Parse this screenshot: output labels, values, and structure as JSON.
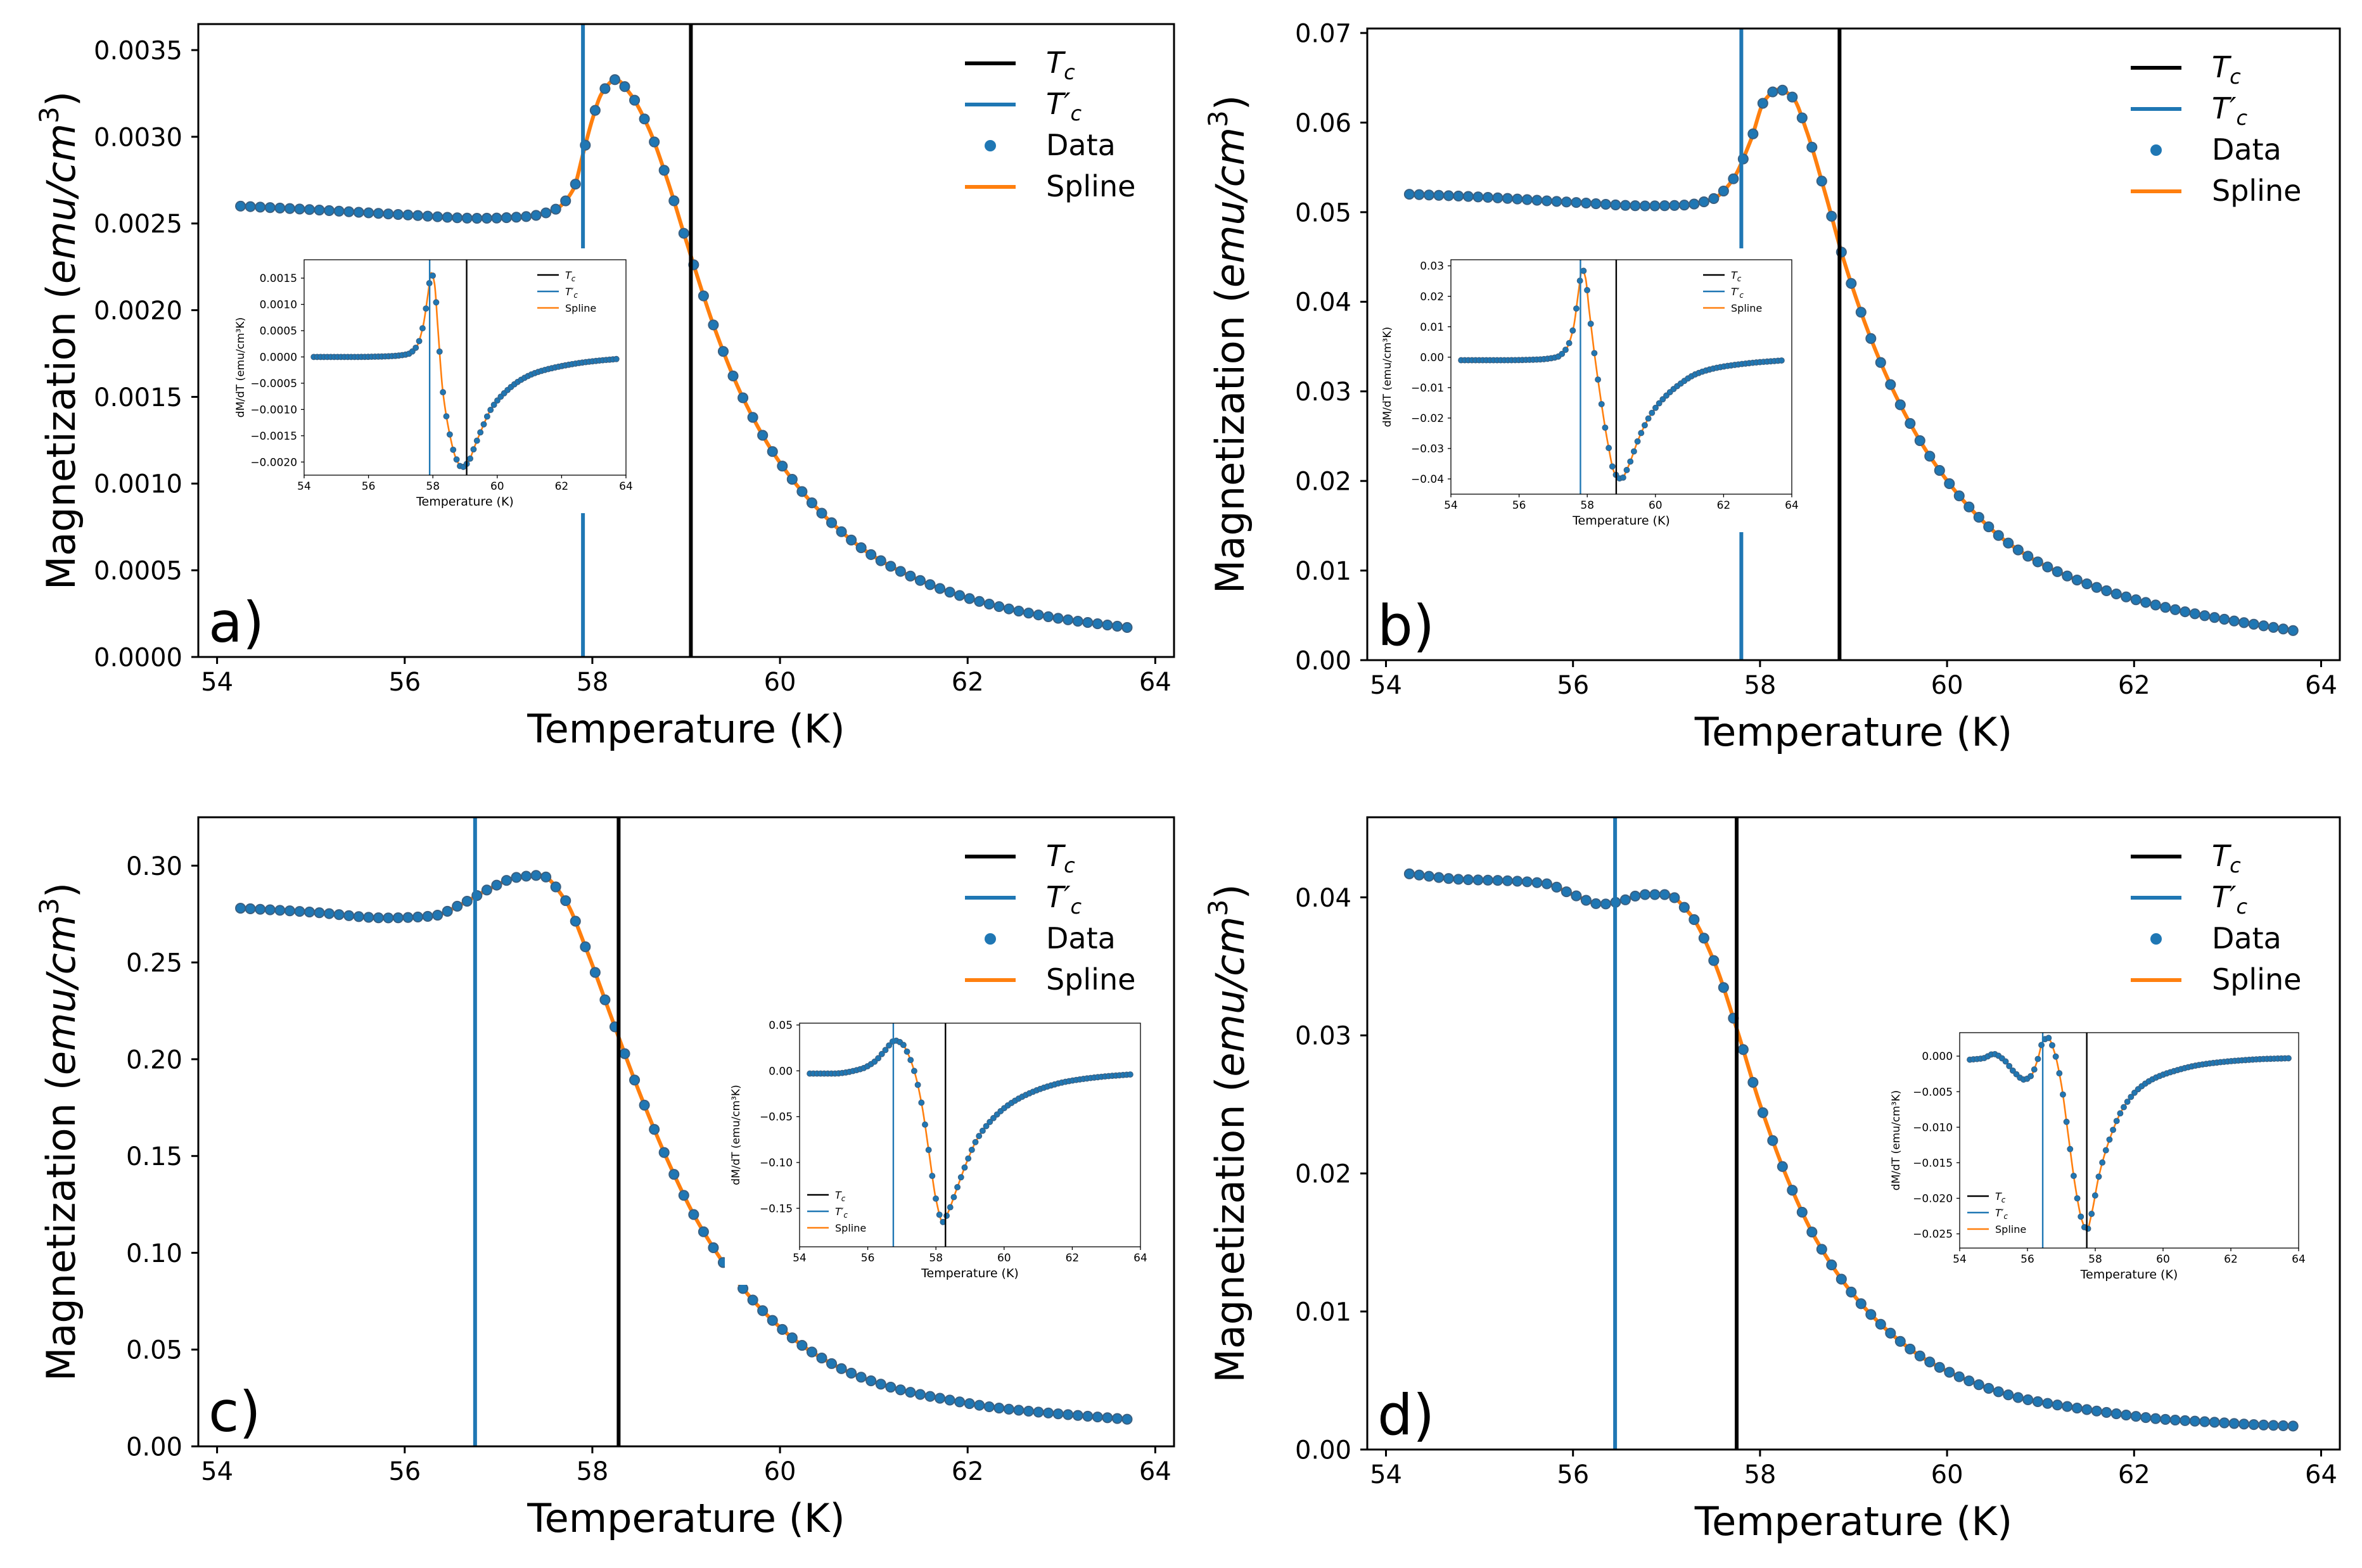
{
  "figure": {
    "colors": {
      "tc": "#000000",
      "tcp": "#1f77b4",
      "data": "#1f77b4",
      "spline": "#ff7f0e",
      "axis": "#000000"
    },
    "legend_labels": {
      "tc_main": "T",
      "tc_sub": "c",
      "tcp_main": "T′",
      "tcp_sub": "c",
      "data": "Data",
      "spline": "Spline"
    }
  },
  "chart_data": [
    {
      "id": "a",
      "panel_label": "a)",
      "type": "line",
      "xlabel": "Temperature (K)",
      "ylabel_main": "Magnetization (",
      "ylabel_unit": "emu/cm",
      "ylabel_sup": "3",
      "ylabel_close": ")",
      "xlim": [
        53.8,
        64.2
      ],
      "ylim": [
        0,
        0.00365
      ],
      "xticks": [
        54,
        56,
        58,
        60,
        62,
        64
      ],
      "yticks": [
        0,
        0.0005,
        0.001,
        0.0015,
        0.002,
        0.0025,
        0.003,
        0.0035
      ],
      "yticklabels": [
        "0.0000",
        "0.0005",
        "0.0010",
        "0.0015",
        "0.0020",
        "0.0025",
        "0.0030",
        "0.0035"
      ],
      "tc": 59.05,
      "tcp": 57.9,
      "legend": "upper right",
      "x": [
        54.25,
        55.0,
        56.0,
        56.8,
        57.3,
        57.6,
        57.8,
        57.9,
        58.0,
        58.1,
        58.25,
        58.4,
        58.6,
        58.8,
        59.0,
        59.3,
        59.6,
        60.0,
        60.5,
        61.0,
        61.5,
        62.0,
        62.5,
        63.0,
        63.7
      ],
      "y": [
        0.0026,
        0.00258,
        0.00255,
        0.00253,
        0.00254,
        0.00258,
        0.0027,
        0.0029,
        0.0031,
        0.00325,
        0.00333,
        0.00325,
        0.00305,
        0.00275,
        0.0024,
        0.0019,
        0.0015,
        0.00112,
        0.0008,
        0.00058,
        0.00044,
        0.00034,
        0.00027,
        0.00022,
        0.00017
      ],
      "inset": {
        "xlabel": "Temperature (K)",
        "ylabel": "dM/dT (emu/cm³K)",
        "xlim": [
          54.0,
          64.0
        ],
        "ylim": [
          -0.00225,
          0.00185
        ],
        "xticks": [
          54,
          56,
          58,
          60,
          62,
          64
        ],
        "yticks": [
          -0.002,
          -0.0015,
          -0.001,
          -0.0005,
          0,
          0.0005,
          0.001,
          0.0015
        ],
        "yticklabels": [
          "−0.0020",
          "−0.0015",
          "−0.0010",
          "−0.0005",
          "0.0000",
          "0.0005",
          "0.0010",
          "0.0015"
        ],
        "tc": 59.05,
        "tcp": 57.9,
        "x": [
          54.3,
          55.5,
          56.5,
          57.2,
          57.5,
          57.7,
          57.85,
          57.95,
          58.05,
          58.15,
          58.3,
          58.5,
          58.7,
          58.9,
          59.1,
          59.3,
          59.5,
          59.8,
          60.2,
          60.7,
          61.2,
          61.8,
          62.5,
          63.0,
          63.7
        ],
        "y": [
          0.0,
          0.0,
          1e-05,
          5e-05,
          0.0002,
          0.0006,
          0.0012,
          0.0016,
          0.0014,
          0.0006,
          -0.0006,
          -0.0014,
          -0.0019,
          -0.0021,
          -0.002,
          -0.0017,
          -0.0014,
          -0.001,
          -0.0007,
          -0.00045,
          -0.0003,
          -0.0002,
          -0.00012,
          -8e-05,
          -4e-05
        ]
      }
    },
    {
      "id": "b",
      "panel_label": "b)",
      "type": "line",
      "xlabel": "Temperature (K)",
      "ylabel_main": "Magnetization (",
      "ylabel_unit": "emu/cm",
      "ylabel_sup": "3",
      "ylabel_close": ")",
      "xlim": [
        53.8,
        64.2
      ],
      "ylim": [
        0,
        0.0705
      ],
      "xticks": [
        54,
        56,
        58,
        60,
        62,
        64
      ],
      "yticks": [
        0,
        0.01,
        0.02,
        0.03,
        0.04,
        0.05,
        0.06,
        0.07
      ],
      "yticklabels": [
        "0.00",
        "0.01",
        "0.02",
        "0.03",
        "0.04",
        "0.05",
        "0.06",
        "0.07"
      ],
      "tc": 58.85,
      "tcp": 57.8,
      "legend": "upper right",
      "x": [
        54.25,
        55.0,
        56.0,
        56.8,
        57.2,
        57.5,
        57.7,
        57.9,
        58.05,
        58.2,
        58.35,
        58.5,
        58.7,
        58.9,
        59.2,
        59.5,
        59.8,
        60.2,
        60.6,
        61.0,
        61.5,
        62.0,
        62.5,
        63.0,
        63.7
      ],
      "y": [
        0.052,
        0.0517,
        0.0511,
        0.0507,
        0.0508,
        0.0515,
        0.0535,
        0.058,
        0.0625,
        0.0637,
        0.0628,
        0.059,
        0.052,
        0.0445,
        0.0355,
        0.0285,
        0.023,
        0.0175,
        0.0135,
        0.0108,
        0.0085,
        0.0068,
        0.0055,
        0.0045,
        0.0033
      ],
      "inset": {
        "xlabel": "Temperature (K)",
        "ylabel": "dM/dT (emu/cm³K)",
        "xlim": [
          54.0,
          64.0
        ],
        "ylim": [
          -0.045,
          0.032
        ],
        "xticks": [
          54,
          56,
          58,
          60,
          62,
          64
        ],
        "yticks": [
          -0.04,
          -0.03,
          -0.02,
          -0.01,
          0,
          0.01,
          0.02,
          0.03
        ],
        "yticklabels": [
          "−0.04",
          "−0.03",
          "−0.02",
          "−0.01",
          "0.00",
          "0.01",
          "0.02",
          "0.03"
        ],
        "tc": 58.85,
        "tcp": 57.8,
        "x": [
          54.3,
          55.5,
          56.5,
          57.1,
          57.4,
          57.6,
          57.75,
          57.85,
          57.95,
          58.05,
          58.2,
          58.4,
          58.6,
          58.8,
          59.0,
          59.2,
          59.5,
          59.8,
          60.2,
          60.7,
          61.2,
          61.8,
          62.5,
          63.0,
          63.7
        ],
        "y": [
          -0.001,
          -0.001,
          -0.0008,
          0.0,
          0.003,
          0.01,
          0.022,
          0.029,
          0.026,
          0.016,
          0.002,
          -0.014,
          -0.028,
          -0.038,
          -0.04,
          -0.036,
          -0.027,
          -0.02,
          -0.014,
          -0.009,
          -0.0055,
          -0.0035,
          -0.0023,
          -0.0017,
          -0.0011
        ]
      }
    },
    {
      "id": "c",
      "panel_label": "c)",
      "type": "line",
      "xlabel": "Temperature (K)",
      "ylabel_main": "Magnetization (",
      "ylabel_unit": "emu/cm",
      "ylabel_sup": "3",
      "ylabel_close": ")",
      "xlim": [
        53.8,
        64.2
      ],
      "ylim": [
        0,
        0.325
      ],
      "xticks": [
        54,
        56,
        58,
        60,
        62,
        64
      ],
      "yticks": [
        0,
        0.05,
        0.1,
        0.15,
        0.2,
        0.25,
        0.3
      ],
      "yticklabels": [
        "0.00",
        "0.05",
        "0.10",
        "0.15",
        "0.20",
        "0.25",
        "0.30"
      ],
      "tc": 58.28,
      "tcp": 56.75,
      "legend": "upper right",
      "x": [
        54.25,
        55.0,
        55.8,
        56.3,
        56.6,
        56.9,
        57.2,
        57.45,
        57.7,
        57.95,
        58.2,
        58.5,
        58.8,
        59.1,
        59.5,
        59.9,
        60.3,
        60.8,
        61.3,
        61.8,
        62.3,
        62.8,
        63.3,
        63.7
      ],
      "y": [
        0.278,
        0.276,
        0.273,
        0.274,
        0.28,
        0.288,
        0.294,
        0.295,
        0.283,
        0.255,
        0.222,
        0.183,
        0.148,
        0.118,
        0.088,
        0.066,
        0.05,
        0.037,
        0.029,
        0.024,
        0.02,
        0.0175,
        0.0155,
        0.014
      ],
      "inset": {
        "xlabel": "Temperature (K)",
        "ylabel": "dM/dT (emu/cm³K)",
        "xlim": [
          54.0,
          64.0
        ],
        "ylim": [
          -0.192,
          0.052
        ],
        "xticks": [
          54,
          56,
          58,
          60,
          62,
          64
        ],
        "yticks": [
          -0.15,
          -0.1,
          -0.05,
          0,
          0.05
        ],
        "yticklabels": [
          "−0.15",
          "−0.10",
          "−0.05",
          "0.00",
          "0.05"
        ],
        "tc": 58.28,
        "tcp": 56.75,
        "x": [
          54.3,
          55.0,
          55.8,
          56.2,
          56.5,
          56.8,
          57.0,
          57.2,
          57.4,
          57.6,
          57.8,
          58.0,
          58.2,
          58.35,
          58.6,
          58.9,
          59.2,
          59.6,
          60.1,
          60.6,
          61.2,
          61.8,
          62.5,
          63.0,
          63.7
        ],
        "y": [
          -0.003,
          -0.003,
          0.002,
          0.01,
          0.022,
          0.033,
          0.03,
          0.017,
          -0.005,
          -0.04,
          -0.09,
          -0.14,
          -0.165,
          -0.155,
          -0.13,
          -0.1,
          -0.075,
          -0.055,
          -0.038,
          -0.027,
          -0.018,
          -0.012,
          -0.008,
          -0.006,
          -0.004
        ]
      }
    },
    {
      "id": "d",
      "panel_label": "d)",
      "type": "line",
      "xlabel": "Temperature (K)",
      "ylabel_main": "Magnetization (",
      "ylabel_unit": "emu/cm",
      "ylabel_sup": "3",
      "ylabel_close": ")",
      "xlim": [
        53.8,
        64.2
      ],
      "ylim": [
        0,
        0.0458
      ],
      "xticks": [
        54,
        56,
        58,
        60,
        62,
        64
      ],
      "yticks": [
        0,
        0.01,
        0.02,
        0.03,
        0.04
      ],
      "yticklabels": [
        "0.00",
        "0.01",
        "0.02",
        "0.03",
        "0.04"
      ],
      "tc": 57.75,
      "tcp": 56.45,
      "legend": "upper right",
      "x": [
        54.25,
        54.8,
        55.3,
        55.7,
        56.0,
        56.3,
        56.5,
        56.75,
        57.0,
        57.25,
        57.5,
        57.75,
        58.0,
        58.3,
        58.6,
        59.0,
        59.4,
        59.8,
        60.3,
        60.8,
        61.3,
        61.8,
        62.3,
        62.8,
        63.3,
        63.7
      ],
      "y": [
        0.0417,
        0.0413,
        0.0412,
        0.041,
        0.0402,
        0.0395,
        0.0397,
        0.0402,
        0.0402,
        0.0388,
        0.0355,
        0.0305,
        0.025,
        0.0195,
        0.0152,
        0.0112,
        0.0084,
        0.0064,
        0.0048,
        0.0037,
        0.0031,
        0.0026,
        0.0022,
        0.002,
        0.0018,
        0.0017
      ],
      "inset": {
        "xlabel": "Temperature (K)",
        "ylabel": "dM/dT (emu/cm³K)",
        "xlim": [
          54.0,
          64.0
        ],
        "ylim": [
          -0.027,
          0.0033
        ],
        "xticks": [
          54,
          56,
          58,
          60,
          62,
          64
        ],
        "yticks": [
          -0.025,
          -0.02,
          -0.015,
          -0.01,
          -0.005,
          0
        ],
        "yticklabels": [
          "−0.025",
          "−0.020",
          "−0.015",
          "−0.010",
          "−0.005",
          "0.000"
        ],
        "tc": 57.75,
        "tcp": 56.45,
        "x": [
          54.3,
          54.7,
          55.0,
          55.3,
          55.6,
          55.9,
          56.1,
          56.3,
          56.45,
          56.6,
          56.8,
          57.0,
          57.2,
          57.4,
          57.6,
          57.75,
          57.9,
          58.1,
          58.4,
          58.8,
          59.3,
          59.8,
          60.4,
          61.0,
          61.6,
          62.3,
          63.0,
          63.7
        ],
        "y": [
          -0.0005,
          -0.0003,
          0.0003,
          -0.0005,
          -0.0022,
          -0.0033,
          -0.0028,
          -0.0005,
          0.002,
          0.0026,
          0.0005,
          -0.004,
          -0.011,
          -0.018,
          -0.023,
          -0.0245,
          -0.022,
          -0.017,
          -0.012,
          -0.0075,
          -0.0045,
          -0.003,
          -0.002,
          -0.0013,
          -0.0009,
          -0.0006,
          -0.0004,
          -0.0003
        ]
      }
    }
  ]
}
